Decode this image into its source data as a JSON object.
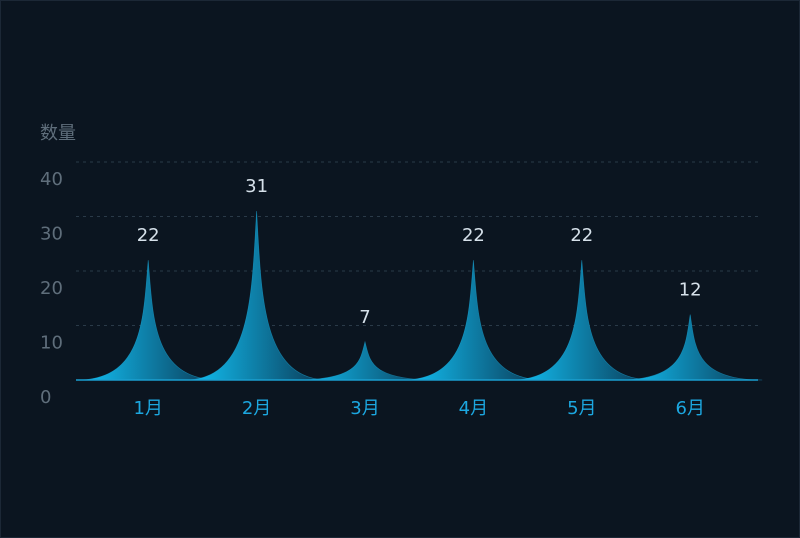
{
  "chart_data": {
    "type": "pictorialBar",
    "y_axis_label": "数量",
    "categories": [
      "1月",
      "2月",
      "3月",
      "4月",
      "5月",
      "6月"
    ],
    "values": [
      22,
      31,
      7,
      22,
      22,
      12
    ],
    "colors": [
      "#12c6fb",
      "#0a3550"
    ],
    "ylim": [
      0,
      40
    ],
    "yticks": [
      0,
      10,
      20,
      30,
      40
    ],
    "grid": true
  }
}
